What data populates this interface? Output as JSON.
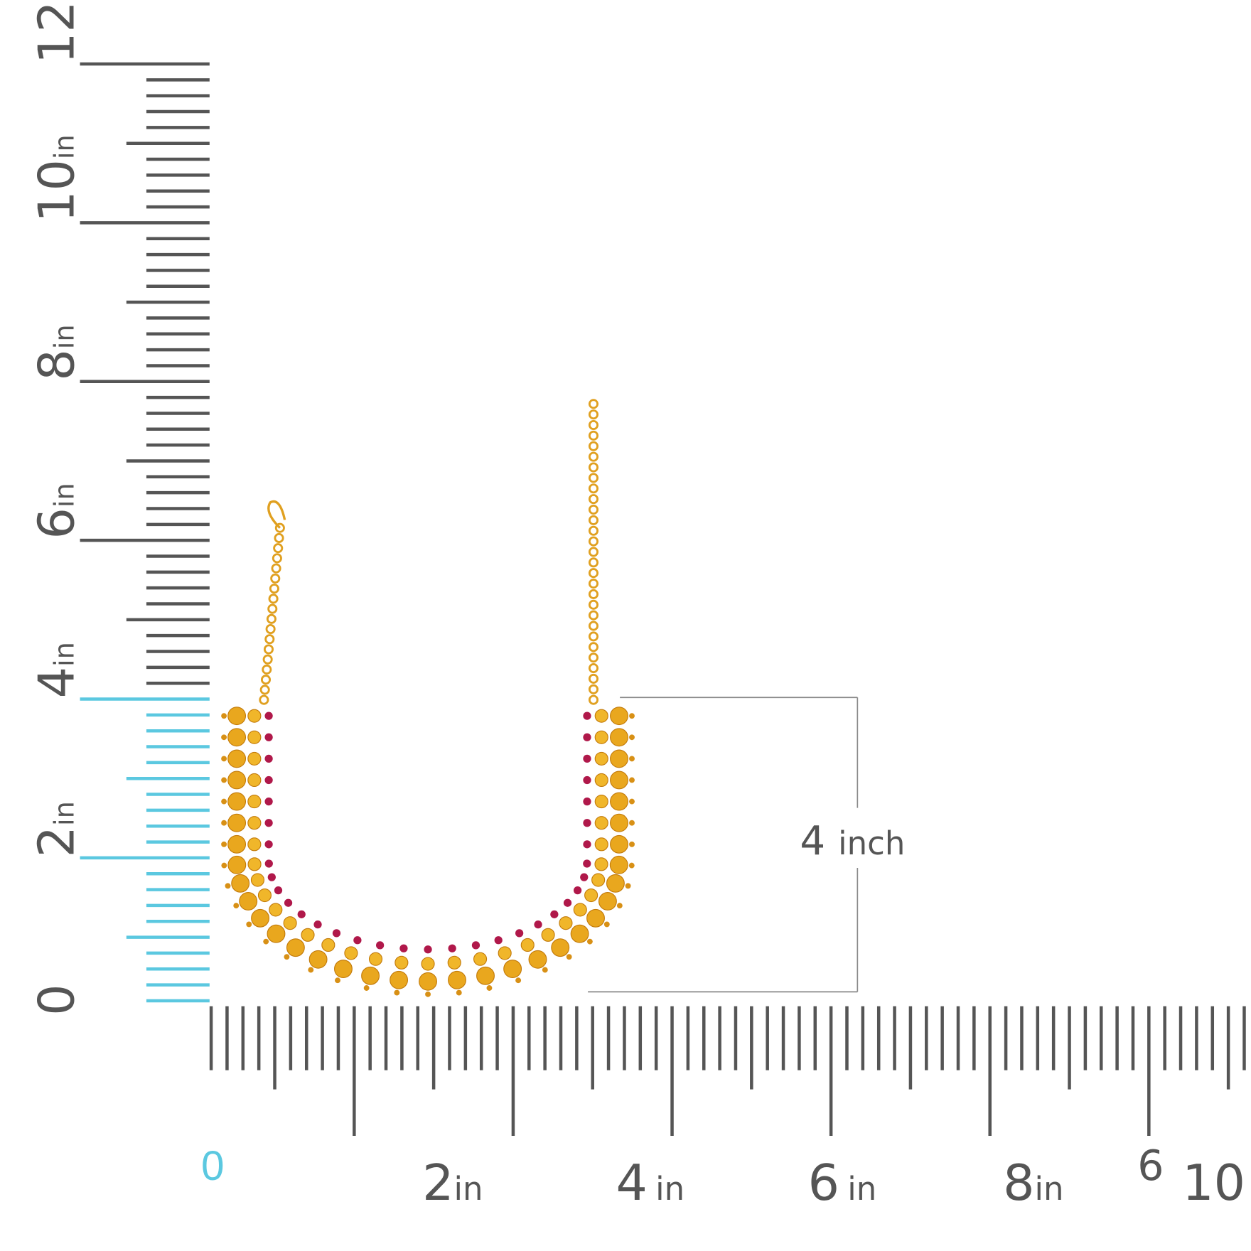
{
  "vertical_ruler": {
    "labels": [
      {
        "number": "12",
        "unit": "in"
      },
      {
        "number": "10",
        "unit": "in"
      },
      {
        "number": "8",
        "unit": "in"
      },
      {
        "number": "6",
        "unit": "in"
      },
      {
        "number": "4",
        "unit": "in"
      },
      {
        "number": "2",
        "unit": "in"
      },
      {
        "number": "0"
      }
    ]
  },
  "horizontal_ruler": {
    "labels": [
      {
        "number": "0"
      },
      {
        "number": "2",
        "unit": "in"
      },
      {
        "number": "4",
        "unit": "in"
      },
      {
        "number": "6",
        "unit": "in"
      },
      {
        "number": "8",
        "unit": "in"
      },
      {
        "number": "6"
      },
      {
        "number": "10"
      }
    ]
  },
  "annotation": {
    "number": "4",
    "unit": "inch"
  }
}
